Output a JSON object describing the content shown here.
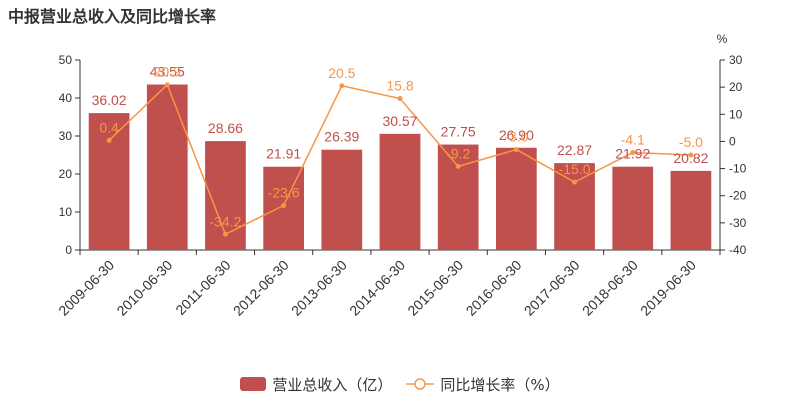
{
  "title": "中报营业总收入及同比增长率",
  "colors": {
    "bar": "#c0504d",
    "line": "#f79646",
    "axis": "#333333"
  },
  "legend": {
    "bar_label": "营业总收入（亿）",
    "line_label": "同比增长率（%）"
  },
  "chart_data": {
    "type": "bar",
    "title": "中报营业总收入及同比增长率",
    "categories": [
      "2009-06-30",
      "2010-06-30",
      "2011-06-30",
      "2012-06-30",
      "2013-06-30",
      "2014-06-30",
      "2015-06-30",
      "2016-06-30",
      "2017-06-30",
      "2018-06-30",
      "2019-06-30"
    ],
    "series": [
      {
        "name": "营业总收入（亿）",
        "type": "bar",
        "axis": "left",
        "values": [
          36.02,
          43.55,
          28.66,
          21.91,
          26.39,
          30.57,
          27.75,
          26.9,
          22.87,
          21.92,
          20.82
        ],
        "labels": [
          "36.02",
          "43.55",
          "28.66",
          "21.91",
          "26.39",
          "30.57",
          "27.75",
          "26.90",
          "22.87",
          "21.92",
          "20.82"
        ]
      },
      {
        "name": "同比增长率（%）",
        "type": "line",
        "axis": "right",
        "values": [
          0.4,
          20.9,
          -34.2,
          -23.6,
          20.5,
          15.8,
          -9.2,
          -3.0,
          -15.0,
          -4.1,
          -5.0
        ],
        "labels": [
          "0.4",
          "20.9",
          "-34.2",
          "-23.6",
          "20.5",
          "15.8",
          "-9.2",
          "-3.0",
          "-15.0",
          "-4.1",
          "-5.0"
        ]
      }
    ],
    "left_axis": {
      "ylim": [
        0,
        50
      ],
      "ticks": [
        0,
        10,
        20,
        30,
        40,
        50
      ]
    },
    "right_axis": {
      "label": "%",
      "ylim": [
        -40,
        30
      ],
      "ticks": [
        -40,
        -30,
        -20,
        -10,
        0,
        10,
        20,
        30
      ]
    },
    "grid": false,
    "legend_position": "bottom-center"
  }
}
